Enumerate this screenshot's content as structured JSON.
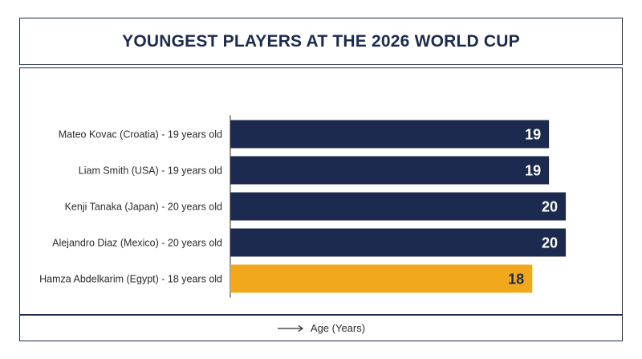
{
  "chart_data": {
    "type": "bar",
    "orientation": "horizontal",
    "title": "YOUNGEST PLAYERS AT THE 2026 WORLD CUP",
    "xlabel": "Age (Years)",
    "ylabel": "",
    "categories": [
      "Mateo Kovac (Croatia) - 19 years old",
      "Liam Smith (USA) - 19 years old",
      "Kenji Tanaka (Japan) - 20 years old",
      "Alejandro Diaz (Mexico) - 20 years old",
      "Hamza Abdelkarim (Egypt) - 18 years old"
    ],
    "values": [
      19,
      19,
      20,
      20,
      18
    ],
    "value_labels": [
      "19",
      "19",
      "20",
      "20",
      "18"
    ],
    "xlim": [
      0,
      20
    ],
    "grid": false,
    "colors": {
      "default": "#1b2a4e",
      "highlight": "#f2a81d",
      "label_on_default": "#ffffff",
      "label_on_highlight": "#1b2a4e"
    },
    "highlight_index": 4
  }
}
